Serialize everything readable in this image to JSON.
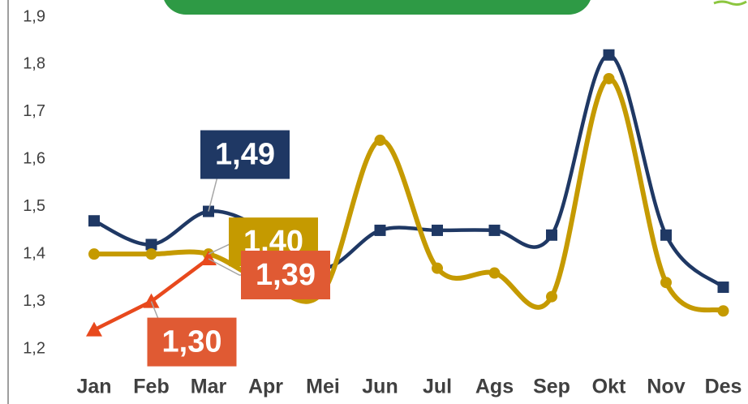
{
  "chart_data": {
    "type": "line",
    "categories": [
      "Jan",
      "Feb",
      "Mar",
      "Apr",
      "Mei",
      "Jun",
      "Jul",
      "Ags",
      "Sep",
      "Okt",
      "Nov",
      "Des"
    ],
    "series": [
      {
        "color": "#1f3864",
        "marker": "square",
        "values": [
          1.47,
          1.42,
          1.49,
          1.45,
          1.37,
          1.45,
          1.45,
          1.45,
          1.44,
          1.82,
          1.44,
          1.33
        ],
        "value_labels": [
          null,
          null,
          "1,49",
          null,
          null,
          null,
          null,
          null,
          null,
          null,
          null,
          null
        ]
      },
      {
        "color": "#c59a00",
        "marker": "circle",
        "values": [
          1.4,
          1.4,
          1.4,
          1.34,
          1.32,
          1.64,
          1.37,
          1.36,
          1.31,
          1.77,
          1.34,
          1.28
        ],
        "value_labels": [
          null,
          null,
          "1,40",
          null,
          null,
          null,
          null,
          null,
          null,
          null,
          null,
          null
        ]
      },
      {
        "color": "#e8491d",
        "marker": "triangle",
        "values": [
          1.24,
          1.3,
          1.39,
          null,
          null,
          null,
          null,
          null,
          null,
          null,
          null,
          null
        ],
        "value_labels": [
          null,
          "1,30",
          "1,39",
          null,
          null,
          null,
          null,
          null,
          null,
          null,
          null,
          null
        ]
      }
    ],
    "ylim": [
      1.2,
      1.9
    ],
    "yticks": [
      {
        "value": 1.2,
        "label": "1,2"
      },
      {
        "value": 1.3,
        "label": "1,3"
      },
      {
        "value": 1.4,
        "label": "1,4"
      },
      {
        "value": 1.5,
        "label": "1,5"
      },
      {
        "value": 1.6,
        "label": "1,6"
      },
      {
        "value": 1.7,
        "label": "1,7"
      },
      {
        "value": 1.8,
        "label": "1,8"
      },
      {
        "value": 1.9,
        "label": "1,9"
      }
    ],
    "grid": false
  }
}
